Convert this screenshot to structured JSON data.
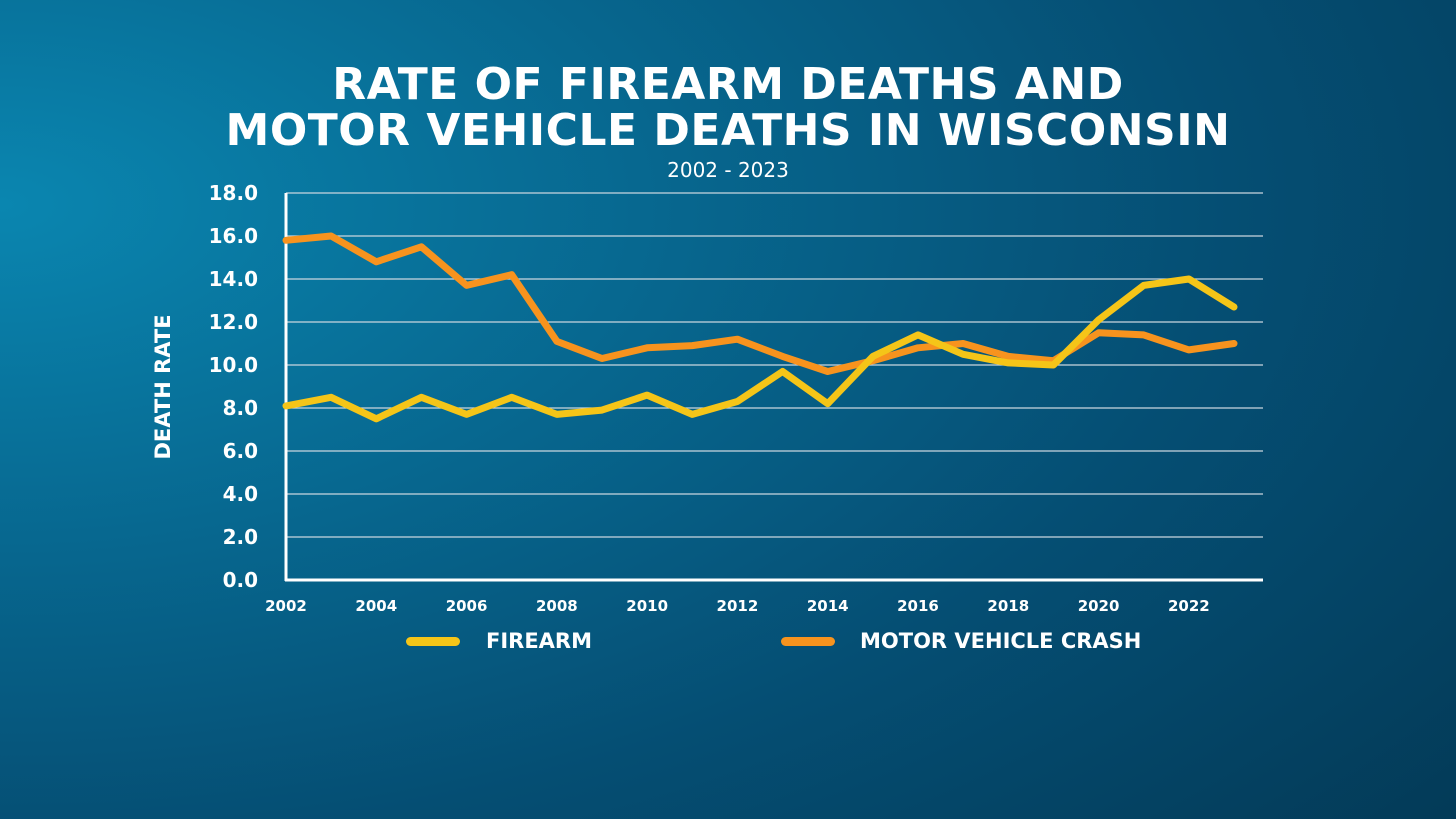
{
  "header": {
    "title_line1": "RATE OF FIREARM DEATHS AND",
    "title_line2": "MOTOR VEHICLE DEATHS IN WISCONSIN",
    "subtitle": "2002 - 2023"
  },
  "colors": {
    "firearm": "#f5c518",
    "motor_vehicle": "#f7931e",
    "gridline": "#c9d6df",
    "axis": "#ffffff",
    "text": "#ffffff"
  },
  "chart_data": {
    "type": "line",
    "title": "RATE OF FIREARM DEATHS AND MOTOR VEHICLE DEATHS IN WISCONSIN",
    "subtitle": "2002 - 2023",
    "xlabel": "",
    "ylabel": "DEATH RATE",
    "x": [
      2002,
      2003,
      2004,
      2005,
      2006,
      2007,
      2008,
      2009,
      2010,
      2011,
      2012,
      2013,
      2014,
      2015,
      2016,
      2017,
      2018,
      2019,
      2020,
      2021,
      2022,
      2023
    ],
    "x_ticks": [
      "2002",
      "2004",
      "2006",
      "2008",
      "2010",
      "2012",
      "2014",
      "2016",
      "2018",
      "2020",
      "2022"
    ],
    "y_ticks": [
      "0.0",
      "2.0",
      "4.0",
      "6.0",
      "8.0",
      "10.0",
      "12.0",
      "14.0",
      "16.0",
      "18.0"
    ],
    "ylim": [
      0,
      18
    ],
    "grid": true,
    "legend_position": "bottom",
    "series": [
      {
        "name": "FIREARM",
        "values": [
          8.1,
          8.5,
          7.5,
          8.5,
          7.7,
          8.5,
          7.7,
          7.9,
          8.6,
          7.7,
          8.3,
          9.7,
          8.2,
          10.4,
          11.4,
          10.5,
          10.1,
          10.0,
          12.1,
          13.7,
          14.0,
          12.7
        ]
      },
      {
        "name": "MOTOR VEHICLE CRASH",
        "values": [
          15.8,
          16.0,
          14.8,
          15.5,
          13.7,
          14.2,
          11.1,
          10.3,
          10.8,
          10.9,
          11.2,
          10.4,
          9.7,
          10.2,
          10.8,
          11.0,
          10.4,
          10.2,
          11.5,
          11.4,
          10.7,
          11.0
        ]
      }
    ]
  },
  "legend": {
    "items": [
      {
        "label": "FIREARM"
      },
      {
        "label": "MOTOR VEHICLE CRASH"
      }
    ]
  }
}
